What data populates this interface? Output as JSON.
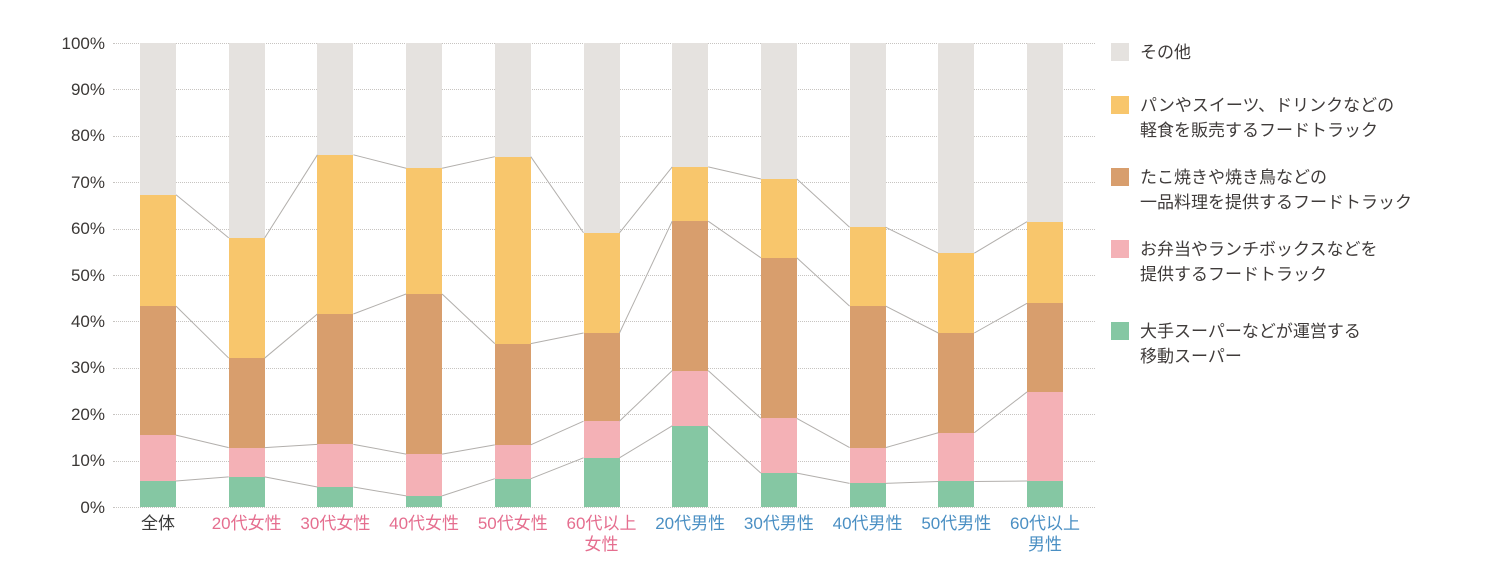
{
  "chart_data": {
    "type": "bar",
    "variant": "100-percent-stacked-column",
    "title": "",
    "xlabel": "",
    "ylabel": "",
    "ylim": [
      0,
      100
    ],
    "grid": "horizontal-dotted",
    "legend_position": "right",
    "y_ticks": [
      "0%",
      "10%",
      "20%",
      "30%",
      "40%",
      "50%",
      "60%",
      "70%",
      "80%",
      "90%",
      "100%"
    ],
    "categories": [
      {
        "label": "全体",
        "group": "all"
      },
      {
        "label": "20代女性",
        "group": "female"
      },
      {
        "label": "30代女性",
        "group": "female"
      },
      {
        "label": "40代女性",
        "group": "female"
      },
      {
        "label": "50代女性",
        "group": "female"
      },
      {
        "label": "60代以上\n女性",
        "group": "female"
      },
      {
        "label": "20代男性",
        "group": "male"
      },
      {
        "label": "30代男性",
        "group": "male"
      },
      {
        "label": "40代男性",
        "group": "male"
      },
      {
        "label": "50代男性",
        "group": "male"
      },
      {
        "label": "60代以上\n男性",
        "group": "male"
      }
    ],
    "group_label_colors": {
      "all": "#3a3a3a",
      "female": "#e56e8f",
      "male": "#4a8fc3"
    },
    "series": [
      {
        "key": "mobile-supermarket",
        "name": "大手スーパーなどが運営する移動スーパー",
        "legend_label": "大手スーパーなどが運営する\n移動スーパー",
        "color": "#85c7a3",
        "values": [
          5.6,
          6.5,
          4.3,
          2.4,
          6.1,
          10.6,
          17.5,
          7.3,
          5.1,
          5.5,
          5.6
        ]
      },
      {
        "key": "bento-lunchbox-truck",
        "name": "お弁当やランチボックスなどを提供するフードトラック",
        "legend_label": "お弁当やランチボックスなどを\n提供するフードトラック",
        "color": "#f4b1b6",
        "values": [
          9.9,
          6.3,
          9.2,
          9.0,
          7.3,
          7.9,
          11.9,
          11.8,
          7.7,
          10.5,
          19.2
        ]
      },
      {
        "key": "single-dish-truck",
        "name": "たこ焼きや焼き鳥などの一品料理を提供するフードトラック",
        "legend_label": "たこ焼きや焼き鳥などの\n一品料理を提供するフードトラック",
        "color": "#d89e6d",
        "values": [
          27.8,
          19.3,
          28.1,
          34.5,
          21.8,
          19.0,
          32.2,
          34.6,
          30.5,
          21.5,
          19.1
        ]
      },
      {
        "key": "snack-drink-truck",
        "name": "パンやスイーツ、ドリンクなどの軽食を販売するフードトラック",
        "legend_label": "パンやスイーツ、ドリンクなどの\n軽食を販売するフードトラック",
        "color": "#f8c66c",
        "values": [
          24.0,
          25.9,
          34.3,
          27.1,
          40.3,
          21.6,
          11.7,
          17.0,
          17.0,
          17.2,
          17.6
        ]
      },
      {
        "key": "other",
        "name": "その他",
        "legend_label": "その他",
        "color": "#e5e2df",
        "values": [
          32.7,
          42.0,
          24.1,
          27.0,
          24.5,
          40.9,
          26.7,
          29.3,
          39.7,
          45.3,
          38.5
        ]
      }
    ],
    "connector_line_color": "#b2afac"
  }
}
